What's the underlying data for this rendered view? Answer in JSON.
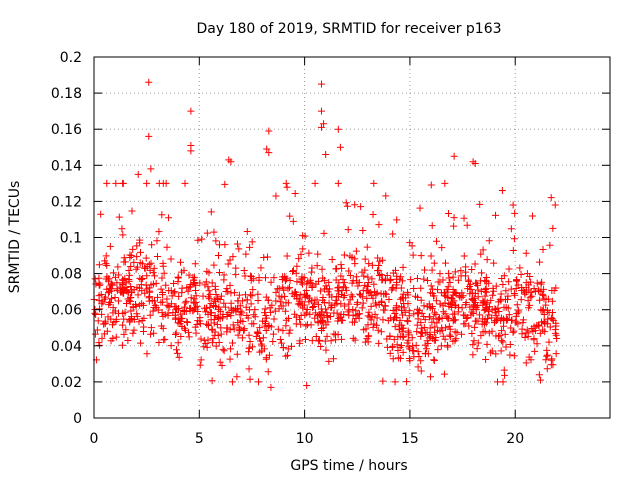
{
  "chart_data": {
    "type": "scatter",
    "title": "Day 180 of 2019, SRMTID for receiver p163",
    "xlabel": "GPS time / hours",
    "ylabel": "SRMTID / TECUs",
    "xlim": [
      0,
      24.5
    ],
    "ylim": [
      0,
      0.2
    ],
    "x_ticks": [
      0,
      5,
      10,
      15,
      20
    ],
    "x_tick_labels": [
      "0",
      "5",
      "10",
      "15",
      "20"
    ],
    "y_ticks": [
      0,
      0.02,
      0.04,
      0.06,
      0.08,
      0.1,
      0.12,
      0.14,
      0.16,
      0.18,
      0.2
    ],
    "y_tick_labels": [
      "0",
      "0.02",
      "0.04",
      "0.06",
      "0.08",
      "0.1",
      "0.12",
      "0.14",
      "0.16",
      "0.18",
      "0.2"
    ],
    "grid": true,
    "marker": "plus",
    "marker_color": "#ff0000",
    "x_data_end": 22,
    "baseline_segments": [
      [
        0,
        0.062
      ],
      [
        1,
        0.07
      ],
      [
        2,
        0.068
      ],
      [
        3,
        0.064
      ],
      [
        4,
        0.058
      ],
      [
        5,
        0.06
      ],
      [
        6,
        0.056
      ],
      [
        7,
        0.058
      ],
      [
        8,
        0.052
      ],
      [
        9,
        0.066
      ],
      [
        10,
        0.064
      ],
      [
        11,
        0.06
      ],
      [
        12,
        0.066
      ],
      [
        13,
        0.064
      ],
      [
        14,
        0.062
      ],
      [
        15,
        0.054
      ],
      [
        16,
        0.052
      ],
      [
        17,
        0.062
      ],
      [
        18,
        0.066
      ],
      [
        19,
        0.054
      ],
      [
        20,
        0.058
      ],
      [
        21,
        0.058
      ],
      [
        22,
        0.052
      ]
    ],
    "notable_points": [
      {
        "x": 2.6,
        "y": 0.186
      },
      {
        "x": 2.6,
        "y": 0.156
      },
      {
        "x": 2.7,
        "y": 0.138
      },
      {
        "x": 2.1,
        "y": 0.135
      },
      {
        "x": 4.6,
        "y": 0.17
      },
      {
        "x": 4.6,
        "y": 0.151
      },
      {
        "x": 4.6,
        "y": 0.148
      },
      {
        "x": 6.4,
        "y": 0.143
      },
      {
        "x": 6.5,
        "y": 0.142
      },
      {
        "x": 8.3,
        "y": 0.159
      },
      {
        "x": 8.2,
        "y": 0.149
      },
      {
        "x": 8.3,
        "y": 0.147
      },
      {
        "x": 10.8,
        "y": 0.185
      },
      {
        "x": 10.8,
        "y": 0.17
      },
      {
        "x": 10.9,
        "y": 0.163
      },
      {
        "x": 10.8,
        "y": 0.161
      },
      {
        "x": 11.6,
        "y": 0.16
      },
      {
        "x": 11.0,
        "y": 0.146
      },
      {
        "x": 11.7,
        "y": 0.15
      },
      {
        "x": 17.1,
        "y": 0.145
      },
      {
        "x": 18.0,
        "y": 0.142
      },
      {
        "x": 18.1,
        "y": 0.141
      },
      {
        "x": 21.9,
        "y": 0.118
      },
      {
        "x": 19.9,
        "y": 0.118
      },
      {
        "x": 8.4,
        "y": 0.017
      },
      {
        "x": 10.1,
        "y": 0.018
      },
      {
        "x": 21.2,
        "y": 0.021
      }
    ]
  }
}
